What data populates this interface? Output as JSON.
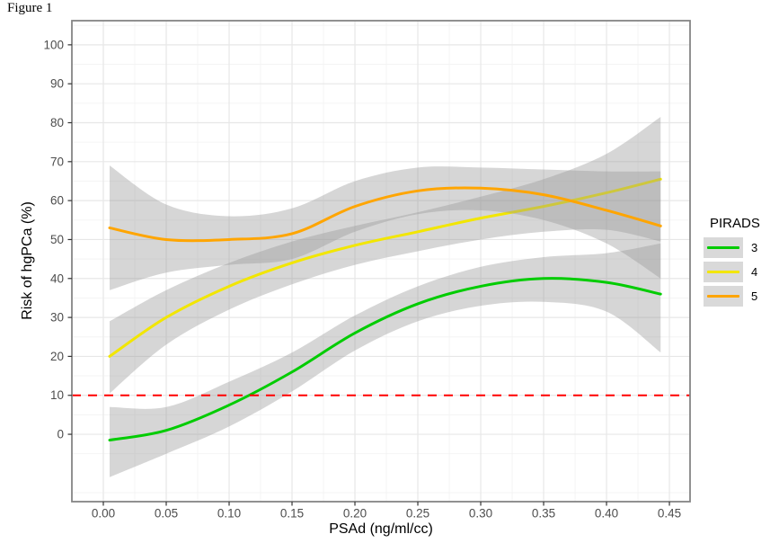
{
  "figure_label": "Figure 1",
  "chart_data": {
    "type": "line",
    "title": "",
    "xlabel": "PSAd (ng/ml/cc)",
    "ylabel": "Risk of hgPCa (%)",
    "xlim": [
      -0.025,
      0.4664
    ],
    "ylim": [
      -17.3,
      106.2
    ],
    "x_ticks": [
      0.0,
      0.05,
      0.1,
      0.15,
      0.2,
      0.25,
      0.3,
      0.35,
      0.4,
      0.45
    ],
    "x_tick_labels": [
      "0.00",
      "0.05",
      "0.10",
      "0.15",
      "0.20",
      "0.25",
      "0.30",
      "0.35",
      "0.40",
      "0.45"
    ],
    "x_minor": [
      0.025,
      0.075,
      0.125,
      0.175,
      0.225,
      0.275,
      0.325,
      0.375,
      0.425
    ],
    "y_ticks": [
      0,
      10,
      20,
      30,
      40,
      50,
      60,
      70,
      80,
      90,
      100
    ],
    "y_minor": [
      -15,
      -5,
      5,
      15,
      25,
      35,
      45,
      55,
      65,
      75,
      85,
      95,
      105
    ],
    "grid": true,
    "x": [
      0.005,
      0.05,
      0.1,
      0.15,
      0.2,
      0.25,
      0.3,
      0.35,
      0.4,
      0.443
    ],
    "series": [
      {
        "name": "3",
        "color": "#00CC00",
        "values": [
          -1.5,
          1.0,
          7.5,
          16.0,
          26.0,
          33.5,
          38.0,
          40.0,
          39.0,
          36.0
        ],
        "ci_lower": [
          -11.0,
          -5.0,
          2.0,
          11.0,
          21.5,
          29.0,
          33.0,
          34.0,
          31.5,
          21.0
        ],
        "ci_upper": [
          7.0,
          7.0,
          13.5,
          21.0,
          30.5,
          38.0,
          43.0,
          45.5,
          46.5,
          49.0
        ]
      },
      {
        "name": "4",
        "color": "#F2E600",
        "values": [
          20.0,
          30.0,
          38.0,
          44.0,
          48.5,
          52.0,
          55.5,
          58.5,
          62.0,
          65.5
        ],
        "ci_lower": [
          10.5,
          23.0,
          32.0,
          38.5,
          43.5,
          47.0,
          50.0,
          52.0,
          52.5,
          49.5
        ],
        "ci_upper": [
          29.0,
          37.0,
          44.0,
          49.5,
          53.5,
          57.0,
          61.0,
          65.5,
          72.0,
          81.5
        ]
      },
      {
        "name": "5",
        "color": "#FFA500",
        "values": [
          53.0,
          50.0,
          50.0,
          51.5,
          58.5,
          62.5,
          63.2,
          61.5,
          57.5,
          53.5
        ],
        "ci_lower": [
          37.0,
          41.5,
          43.5,
          45.0,
          52.0,
          56.5,
          57.5,
          55.0,
          49.0,
          40.0
        ],
        "ci_upper": [
          69.0,
          59.0,
          56.0,
          58.0,
          65.0,
          68.5,
          68.5,
          68.0,
          67.5,
          67.5
        ]
      }
    ],
    "ci_fill": "#999999",
    "ci_opacity": 0.4,
    "reference_line": {
      "y": 10,
      "color": "#FF0000",
      "style": "dashed"
    },
    "legend": {
      "title": "PIRADS",
      "position": "right",
      "key_fill": "#D9D9D9"
    },
    "style": {
      "grid_major": "#E7E7E7",
      "grid_minor": "#F3F3F3",
      "panel_border": "#858585",
      "tick_color": "#333333",
      "tick_label_color": "#4D4D4D"
    }
  }
}
